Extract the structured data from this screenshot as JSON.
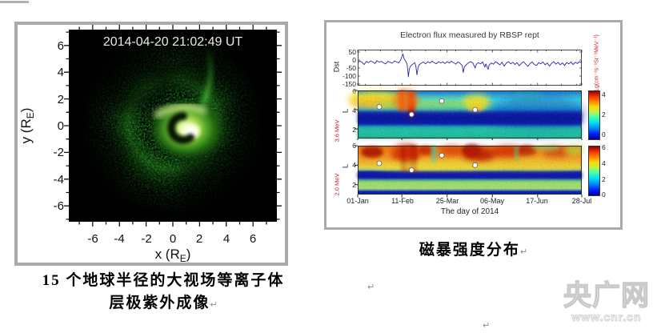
{
  "page": {
    "background": "#ffffff"
  },
  "decor": {
    "return_mark": "↵"
  },
  "left_figure": {
    "timestamp": "2014-04-20 21:02:49 UT",
    "xlabel": {
      "prefix": "x (R",
      "sub": "E",
      "suffix": ")"
    },
    "ylabel": {
      "prefix": "y (R",
      "sub": "E",
      "suffix": ")"
    },
    "x_ticks": [
      "-6",
      "-4",
      "-2",
      "0",
      "2",
      "4",
      "6"
    ],
    "y_ticks": [
      "6",
      "4",
      "2",
      "0",
      "-2",
      "-4",
      "-6"
    ],
    "caption_line1": "15 个地球半径的大视场等离子体",
    "caption_line2": "层极紫外成像"
  },
  "right_figure": {
    "title": "Electron flux measured by RBSP rept",
    "dst_ylabel": "Dst",
    "dst_yticks": [
      "50",
      "0",
      "-50",
      "-100",
      "-150"
    ],
    "panel1": {
      "energy": "3.6 MeV",
      "ylabel": "L",
      "yticks": [
        "6",
        "4",
        "2"
      ],
      "cb_ticks": [
        "4",
        "2",
        "0"
      ]
    },
    "panel2": {
      "energy": "2.0 MeV",
      "ylabel": "L",
      "yticks": [
        "6",
        "4",
        "2"
      ],
      "cb_ticks": [
        "6",
        "4",
        "2",
        "0"
      ]
    },
    "colorbar_unit": "Lg(cm⁻²s⁻¹Sr⁻¹MeV⁻¹)",
    "x_ticks": [
      "01-Jan",
      "11-Feb",
      "25-Mar",
      "06-May",
      "17-Jun",
      "28-Jul"
    ],
    "xlabel": "The day of 2014",
    "caption": "磁暴强度分布"
  },
  "watermark": {
    "brand": "央广网",
    "url": "www.cnr.cn"
  },
  "colors": {
    "accent_red": "#cc2222",
    "dst_line": "#2626a8",
    "frame_gray": "#a9a9a9"
  },
  "chart_data": [
    {
      "type": "line",
      "name": "Dst index",
      "ylabel": "Dst",
      "y_range": [
        -150,
        50
      ],
      "x_range_days": [
        1,
        209
      ],
      "x_tick_days": [
        1,
        42,
        84,
        126,
        168,
        209
      ],
      "x_tick_labels": [
        "01-Jan",
        "11-Feb",
        "25-Mar",
        "06-May",
        "17-Jun",
        "28-Jul"
      ],
      "points": [
        [
          1,
          -18
        ],
        [
          3,
          -6
        ],
        [
          5,
          -14
        ],
        [
          7,
          -28
        ],
        [
          9,
          -8
        ],
        [
          11,
          -16
        ],
        [
          13,
          -6
        ],
        [
          15,
          -12
        ],
        [
          17,
          -22
        ],
        [
          19,
          -4
        ],
        [
          21,
          -14
        ],
        [
          23,
          -8
        ],
        [
          25,
          -18
        ],
        [
          27,
          -24
        ],
        [
          29,
          -8
        ],
        [
          31,
          -14
        ],
        [
          33,
          -20
        ],
        [
          35,
          -6
        ],
        [
          37,
          -12
        ],
        [
          39,
          -18
        ],
        [
          41,
          2
        ],
        [
          43,
          38
        ],
        [
          44,
          8
        ],
        [
          46,
          -12
        ],
        [
          47,
          -30
        ],
        [
          48,
          -105
        ],
        [
          49,
          -55
        ],
        [
          50,
          -38
        ],
        [
          52,
          -26
        ],
        [
          54,
          -16
        ],
        [
          55,
          -40
        ],
        [
          56,
          -92
        ],
        [
          57,
          -48
        ],
        [
          58,
          -30
        ],
        [
          60,
          -20
        ],
        [
          62,
          -12
        ],
        [
          64,
          -24
        ],
        [
          66,
          -10
        ],
        [
          68,
          -18
        ],
        [
          70,
          -8
        ],
        [
          72,
          -16
        ],
        [
          74,
          -24
        ],
        [
          76,
          -10
        ],
        [
          78,
          -18
        ],
        [
          80,
          -12
        ],
        [
          82,
          -22
        ],
        [
          84,
          -10
        ],
        [
          86,
          -18
        ],
        [
          88,
          -8
        ],
        [
          90,
          -16
        ],
        [
          92,
          -26
        ],
        [
          94,
          -12
        ],
        [
          96,
          -20
        ],
        [
          98,
          -34
        ],
        [
          99,
          -78
        ],
        [
          100,
          -42
        ],
        [
          102,
          -28
        ],
        [
          104,
          -16
        ],
        [
          106,
          -10
        ],
        [
          108,
          -20
        ],
        [
          110,
          -50
        ],
        [
          111,
          -28
        ],
        [
          113,
          -16
        ],
        [
          115,
          -24
        ],
        [
          117,
          -12
        ],
        [
          119,
          -44
        ],
        [
          120,
          -24
        ],
        [
          122,
          -58
        ],
        [
          123,
          -32
        ],
        [
          125,
          -18
        ],
        [
          127,
          -26
        ],
        [
          129,
          -10
        ],
        [
          131,
          -20
        ],
        [
          133,
          -30
        ],
        [
          135,
          -14
        ],
        [
          137,
          -38
        ],
        [
          139,
          -18
        ],
        [
          141,
          -10
        ],
        [
          143,
          -24
        ],
        [
          145,
          -14
        ],
        [
          147,
          -28
        ],
        [
          149,
          -16
        ],
        [
          151,
          -36
        ],
        [
          153,
          -20
        ],
        [
          155,
          -10
        ],
        [
          157,
          -26
        ],
        [
          159,
          -40
        ],
        [
          161,
          -22
        ],
        [
          163,
          -12
        ],
        [
          165,
          -28
        ],
        [
          167,
          -34
        ],
        [
          169,
          -16
        ],
        [
          171,
          -24
        ],
        [
          173,
          -12
        ],
        [
          175,
          -30
        ],
        [
          177,
          -18
        ],
        [
          179,
          -38
        ],
        [
          181,
          -20
        ],
        [
          183,
          -10
        ],
        [
          185,
          -26
        ],
        [
          187,
          -14
        ],
        [
          189,
          -30
        ],
        [
          191,
          -18
        ],
        [
          193,
          -34
        ],
        [
          195,
          -16
        ],
        [
          197,
          -24
        ],
        [
          199,
          -12
        ],
        [
          201,
          -28
        ],
        [
          203,
          -14
        ],
        [
          205,
          -22
        ],
        [
          207,
          -10
        ],
        [
          209,
          -18
        ]
      ]
    },
    {
      "type": "heatmap",
      "name": "RBSP REPT electron flux 3.6 MeV",
      "ylabel": "L",
      "y_range": [
        1,
        6
      ],
      "colorbar_range": [
        0,
        4
      ],
      "colorbar_unit": "Lg(cm⁻²s⁻¹Sr⁻¹MeV⁻¹)",
      "events_day_L": [
        [
          21,
          4.3
        ],
        [
          51,
          3.5
        ],
        [
          79,
          4.9
        ],
        [
          110,
          4.0
        ]
      ]
    },
    {
      "type": "heatmap",
      "name": "RBSP REPT electron flux 2.0 MeV",
      "ylabel": "L",
      "y_range": [
        1,
        6
      ],
      "colorbar_range": [
        0,
        6
      ],
      "colorbar_unit": "Lg(cm⁻²s⁻¹Sr⁻¹MeV⁻¹)",
      "events_day_L": [
        [
          21,
          4.2
        ],
        [
          51,
          3.5
        ],
        [
          79,
          5.0
        ],
        [
          110,
          4.0
        ]
      ]
    }
  ]
}
